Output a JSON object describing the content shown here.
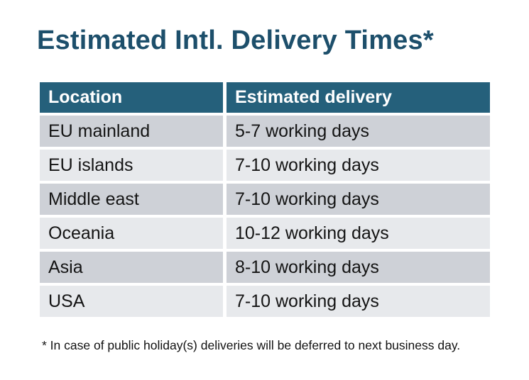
{
  "page": {
    "title": "Estimated Intl. Delivery Times*"
  },
  "table": {
    "headers": {
      "location": "Location",
      "delivery": "Estimated delivery"
    },
    "rows": [
      {
        "location": "EU mainland",
        "delivery": "5-7 working days"
      },
      {
        "location": "EU islands",
        "delivery": "7-10 working days"
      },
      {
        "location": "Middle east",
        "delivery": "7-10 working days"
      },
      {
        "location": "Oceania",
        "delivery": "10-12 working days"
      },
      {
        "location": "Asia",
        "delivery": "8-10 working days"
      },
      {
        "location": "USA",
        "delivery": "7-10 working days"
      }
    ]
  },
  "footnote": "* In case of public holiday(s) deliveries will be deferred to next business day.",
  "colors": {
    "header_bg": "#25607b",
    "header_text": "#ffffff",
    "title_text": "#1d4f6b",
    "row_dark": "#ced1d7",
    "row_light": "#e7e9ec",
    "cell_text": "#141414"
  }
}
